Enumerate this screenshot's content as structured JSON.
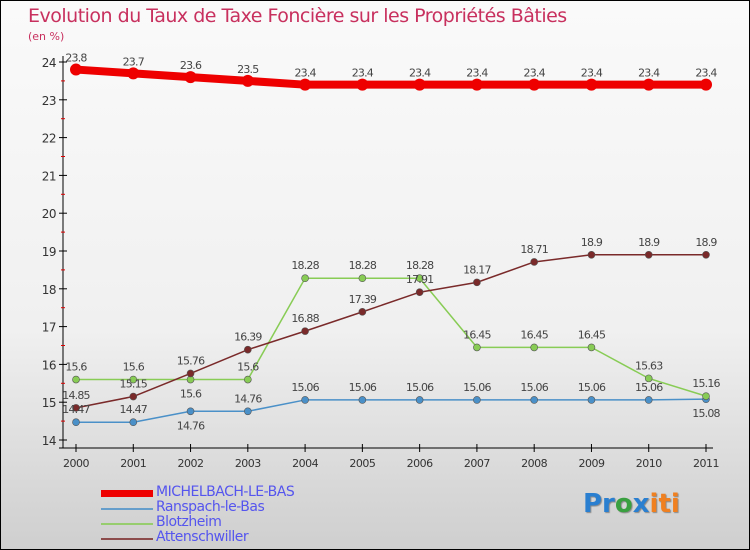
{
  "chart_data": {
    "type": "line",
    "title": "Evolution du Taux de Taxe Foncière sur les Propriétés Bâties",
    "subtitle": "(en %)",
    "x": [
      "2000",
      "2001",
      "2002",
      "2003",
      "2004",
      "2005",
      "2006",
      "2007",
      "2008",
      "2009",
      "2010",
      "2011"
    ],
    "ylim": [
      14,
      24
    ],
    "yticks": [
      "14",
      "15",
      "16",
      "17",
      "18",
      "19",
      "20",
      "21",
      "22",
      "23",
      "24"
    ],
    "series": [
      {
        "name": "MICHELBACH-LE-BAS",
        "color": "#ee0000",
        "values": [
          23.8,
          23.7,
          23.6,
          23.5,
          23.4,
          23.4,
          23.4,
          23.4,
          23.4,
          23.4,
          23.4,
          23.4
        ]
      },
      {
        "name": "Ranspach-le-Bas",
        "color": "#4a90c8",
        "values": [
          14.47,
          14.47,
          14.76,
          14.76,
          15.06,
          15.06,
          15.06,
          15.06,
          15.06,
          15.06,
          15.06,
          15.08
        ]
      },
      {
        "name": "Blotzheim",
        "color": "#88cc55",
        "values": [
          15.6,
          15.6,
          15.6,
          15.6,
          18.28,
          18.28,
          18.28,
          16.45,
          16.45,
          16.45,
          15.63,
          15.16
        ]
      },
      {
        "name": "Attenschwiller",
        "color": "#7a2a2a",
        "values": [
          14.85,
          15.15,
          15.76,
          16.39,
          16.88,
          17.39,
          17.91,
          18.17,
          18.71,
          18.9,
          18.9,
          18.9
        ]
      }
    ],
    "legend_position": "bottom-left"
  },
  "logo": "Proxiti"
}
